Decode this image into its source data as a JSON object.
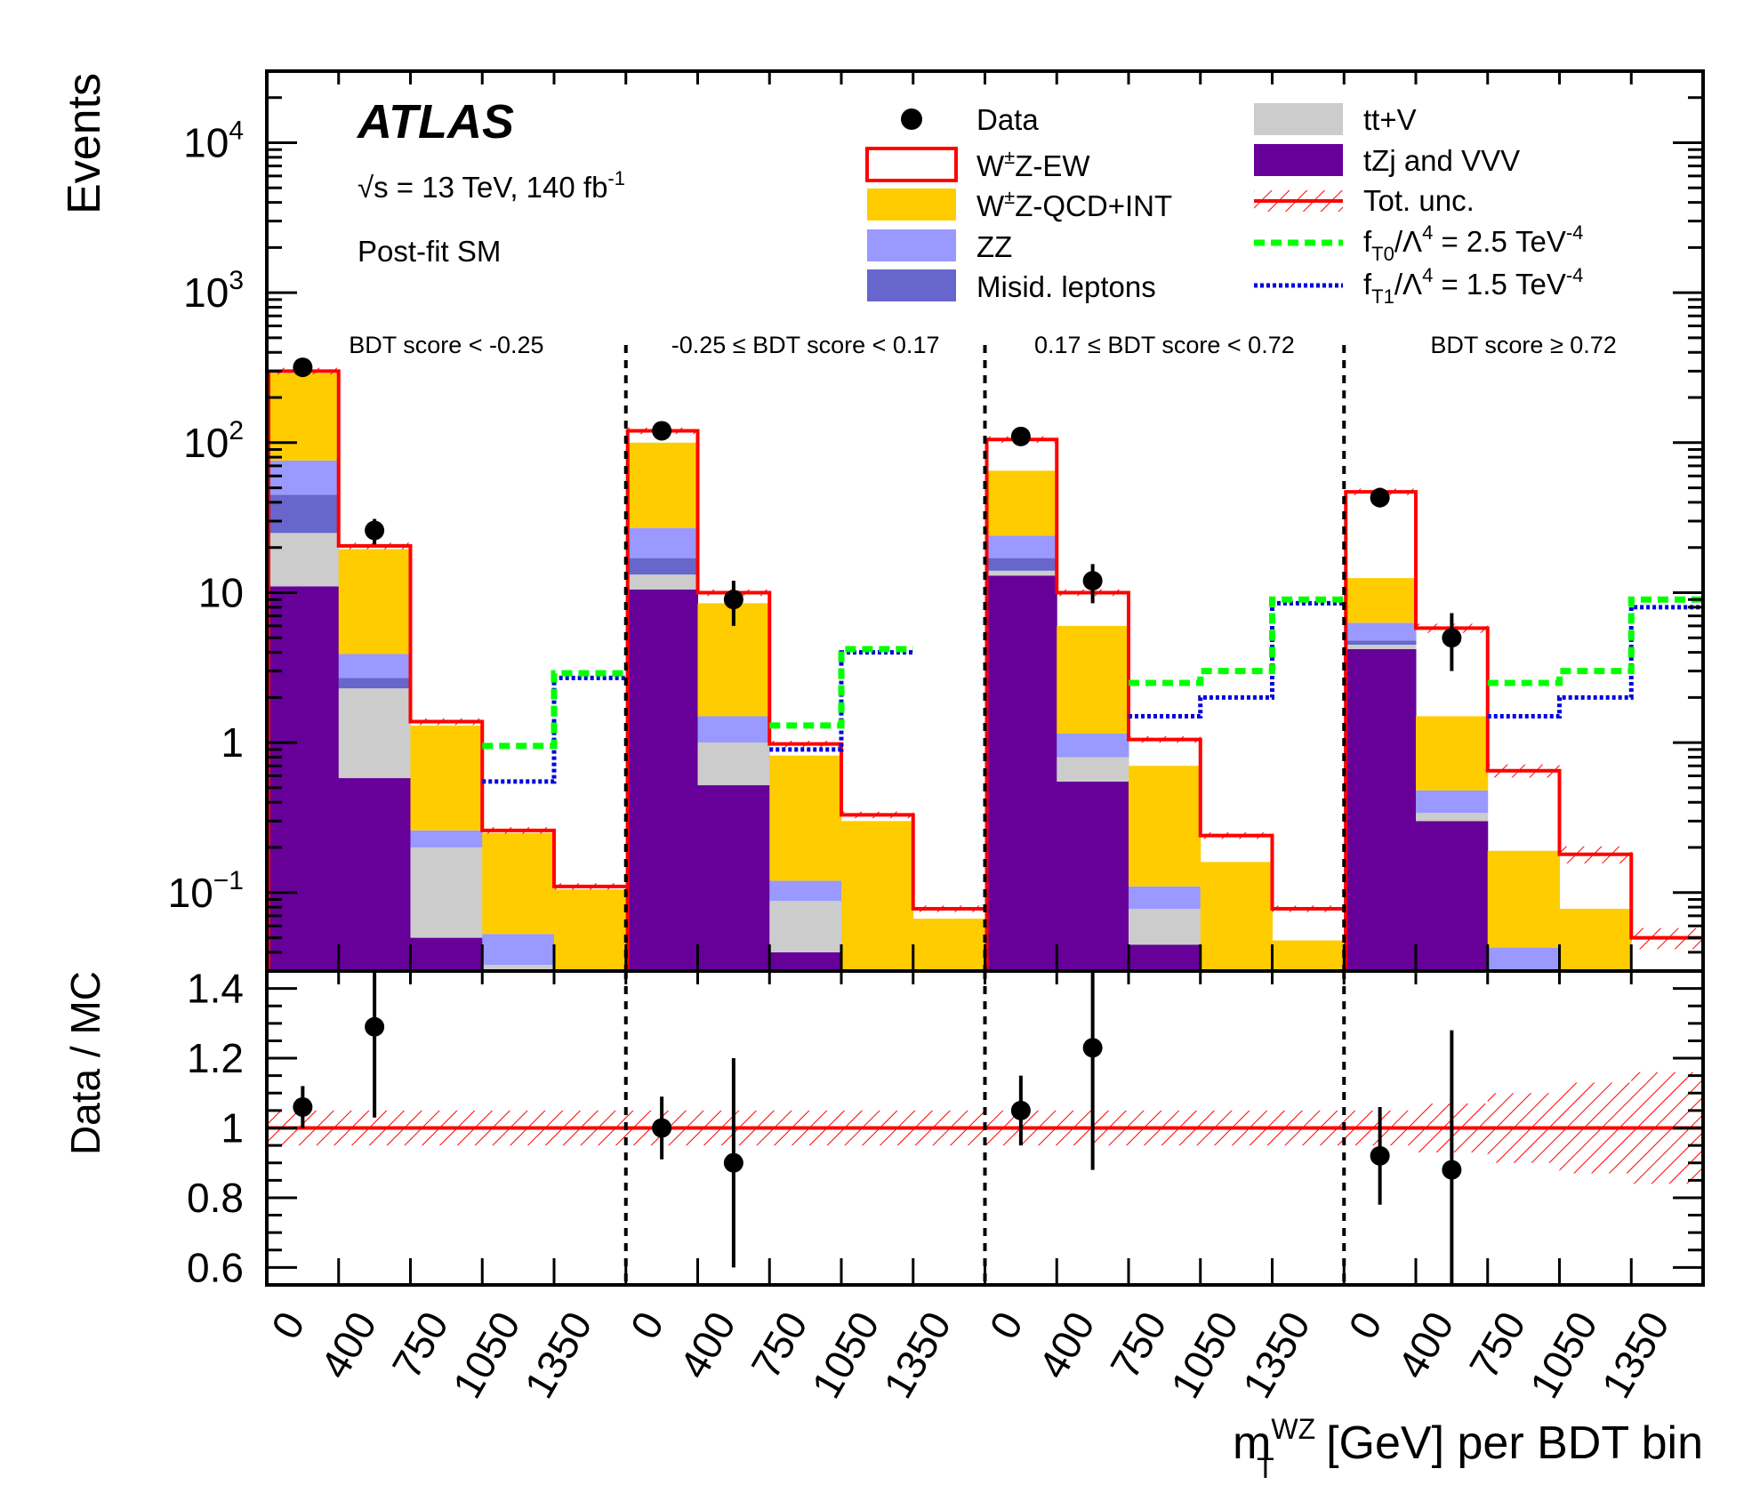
{
  "chart_data": {
    "type": "bar",
    "stacked": true,
    "log_y_upper": true,
    "experiment": "ATLAS",
    "energy_label": "√s = 13 TeV, 140 fb",
    "energy_label_sup": "-1",
    "fit_label": "Post-fit SM",
    "ylabel_upper": "Events",
    "ylabel_lower": "Data / MC",
    "xlabel": "m",
    "xlabel_sup": "WZ",
    "xlabel_sub": "T",
    "xlabel_rest": " [GeV] per BDT bin",
    "ylim_upper": [
      0.03,
      30000
    ],
    "ylim_lower": [
      0.55,
      1.45
    ],
    "upper_tick_labels": [
      {
        "value": 10000,
        "base": "10",
        "exp": "4"
      },
      {
        "value": 1000,
        "base": "10",
        "exp": "3"
      },
      {
        "value": 100,
        "base": "10",
        "exp": "2"
      },
      {
        "value": 10,
        "base": "10",
        "exp": ""
      },
      {
        "value": 1,
        "base": "1",
        "exp": ""
      },
      {
        "value": 0.1,
        "base": "10",
        "exp": "−1"
      }
    ],
    "lower_tick_labels": [
      {
        "value": 1.4,
        "label": "1.4"
      },
      {
        "value": 1.2,
        "label": "1.2"
      },
      {
        "value": 1.0,
        "label": "1"
      },
      {
        "value": 0.8,
        "label": "0.8"
      },
      {
        "value": 0.6,
        "label": "0.6"
      }
    ],
    "x_tick_labels": [
      "0",
      "400",
      "750",
      "1050",
      "1350"
    ],
    "regions": [
      "BDT score < -0.25",
      "-0.25 ≤ BDT score < 0.17",
      "0.17 ≤ BDT score < 0.72",
      "BDT score ≥ 0.72"
    ],
    "legend": {
      "data": "Data",
      "wz_ew": "W",
      "wz_ew_sup": "±",
      "wz_ew_rest": "Z-EW",
      "wz_qcd": "W",
      "wz_qcd_sup": "±",
      "wz_qcd_rest": "Z-QCD+INT",
      "zz": "ZZ",
      "misid": "Misid. leptons",
      "ttv": "tt+V",
      "tzj": "tZj and VVV",
      "unc": "Tot. unc.",
      "ft0_f": "f",
      "ft0_sub": "T0",
      "ft0_rest": "/Λ",
      "ft0_sup1": "4",
      "ft0_val": " = 2.5 TeV",
      "ft0_sup2": "-4",
      "ft1_f": "f",
      "ft1_sub": "T1",
      "ft1_rest": "/Λ",
      "ft1_sup1": "4",
      "ft1_val": " = 1.5 TeV",
      "ft1_sup2": "-4"
    },
    "colors": {
      "tzj": "#660099",
      "ttv": "#cccccc",
      "misid": "#6666cc",
      "zz": "#9999ff",
      "wz_qcd": "#ffcc00",
      "wz_ew": "#ff0000",
      "ft0": "#00ff00",
      "ft1": "#0000dd",
      "data": "#000000"
    },
    "stack_order": [
      "tzj",
      "ttv",
      "misid",
      "zz",
      "wz_qcd",
      "wz_ew"
    ],
    "stack_tops": [
      {
        "tzj": 11,
        "ttv": 25,
        "misid": 45,
        "zz": 76,
        "wz_qcd": 290,
        "wz_ew": 300
      },
      {
        "tzj": 0.58,
        "ttv": 2.3,
        "misid": 2.7,
        "zz": 3.9,
        "wz_qcd": 19.5,
        "wz_ew": 20.5
      },
      {
        "tzj": 0.05,
        "ttv": 0.2,
        "misid": 0.2,
        "zz": 0.26,
        "wz_qcd": 1.3,
        "wz_ew": 1.38
      },
      {
        "tzj": 0.025,
        "ttv": 0.033,
        "misid": 0.033,
        "zz": 0.053,
        "wz_qcd": 0.25,
        "wz_ew": 0.26
      },
      {
        "tzj": 0.025,
        "ttv": 0.025,
        "misid": 0.025,
        "zz": 0.025,
        "wz_qcd": 0.105,
        "wz_ew": 0.11
      },
      {
        "tzj": 10.5,
        "ttv": 13.2,
        "misid": 17,
        "zz": 27,
        "wz_qcd": 100,
        "wz_ew": 120
      },
      {
        "tzj": 0.52,
        "ttv": 1.0,
        "misid": 1.0,
        "zz": 1.5,
        "wz_qcd": 8.5,
        "wz_ew": 10
      },
      {
        "tzj": 0.04,
        "ttv": 0.088,
        "misid": 0.088,
        "zz": 0.12,
        "wz_qcd": 0.82,
        "wz_ew": 0.98
      },
      {
        "tzj": 0.025,
        "ttv": 0.025,
        "misid": 0.025,
        "zz": 0.025,
        "wz_qcd": 0.3,
        "wz_ew": 0.33
      },
      {
        "tzj": 0.025,
        "ttv": 0.025,
        "misid": 0.025,
        "zz": 0.025,
        "wz_qcd": 0.067,
        "wz_ew": 0.078
      },
      {
        "tzj": 13,
        "ttv": 14,
        "misid": 17,
        "zz": 24,
        "wz_qcd": 65,
        "wz_ew": 105
      },
      {
        "tzj": 0.55,
        "ttv": 0.8,
        "misid": 0.8,
        "zz": 1.15,
        "wz_qcd": 6,
        "wz_ew": 10
      },
      {
        "tzj": 0.045,
        "ttv": 0.078,
        "misid": 0.078,
        "zz": 0.11,
        "wz_qcd": 0.7,
        "wz_ew": 1.05
      },
      {
        "tzj": 0.025,
        "ttv": 0.025,
        "misid": 0.025,
        "zz": 0.025,
        "wz_qcd": 0.16,
        "wz_ew": 0.24
      },
      {
        "tzj": 0.025,
        "ttv": 0.025,
        "misid": 0.025,
        "zz": 0.025,
        "wz_qcd": 0.048,
        "wz_ew": 0.078
      },
      {
        "tzj": 4.2,
        "ttv": 4.5,
        "misid": 4.8,
        "zz": 6.3,
        "wz_qcd": 12.5,
        "wz_ew": 47
      },
      {
        "tzj": 0.3,
        "ttv": 0.34,
        "misid": 0.34,
        "zz": 0.48,
        "wz_qcd": 1.5,
        "wz_ew": 5.8
      },
      {
        "tzj": 0.025,
        "ttv": 0.025,
        "misid": 0.025,
        "zz": 0.043,
        "wz_qcd": 0.19,
        "wz_ew": 0.65
      },
      {
        "tzj": 0.025,
        "ttv": 0.025,
        "misid": 0.025,
        "zz": 0.025,
        "wz_qcd": 0.078,
        "wz_ew": 0.18
      },
      {
        "tzj": 0.025,
        "ttv": 0.025,
        "misid": 0.025,
        "zz": 0.025,
        "wz_qcd": 0.025,
        "wz_ew": 0.05
      }
    ],
    "ft0_bins": [
      {
        "bin": 3,
        "value": 0.95
      },
      {
        "bin": 4,
        "value": 2.9
      },
      {
        "bin": 7,
        "value": 1.3
      },
      {
        "bin": 8,
        "value": 4.2
      },
      {
        "bin": 12,
        "value": 2.5
      },
      {
        "bin": 13,
        "value": 3.0
      },
      {
        "bin": 14,
        "value": 9.0
      },
      {
        "bin": 17,
        "value": 2.5
      },
      {
        "bin": 18,
        "value": 3.0
      },
      {
        "bin": 19,
        "value": 9.0
      }
    ],
    "ft1_bins": [
      {
        "bin": 3,
        "value": 0.55
      },
      {
        "bin": 4,
        "value": 2.7
      },
      {
        "bin": 7,
        "value": 0.9
      },
      {
        "bin": 8,
        "value": 4.0
      },
      {
        "bin": 12,
        "value": 1.5
      },
      {
        "bin": 13,
        "value": 2.0
      },
      {
        "bin": 14,
        "value": 8.5
      },
      {
        "bin": 17,
        "value": 1.5
      },
      {
        "bin": 18,
        "value": 2.0
      },
      {
        "bin": 19,
        "value": 8.0
      }
    ],
    "data_points": [
      {
        "bin": 0,
        "value": 318,
        "lo": 300,
        "hi": 336
      },
      {
        "bin": 1,
        "value": 26,
        "lo": 21,
        "hi": 31
      },
      {
        "bin": 5,
        "value": 120,
        "lo": 109,
        "hi": 131
      },
      {
        "bin": 6,
        "value": 9,
        "lo": 6,
        "hi": 12
      },
      {
        "bin": 10,
        "value": 110,
        "lo": 100,
        "hi": 121
      },
      {
        "bin": 11,
        "value": 12,
        "lo": 8.5,
        "hi": 15.5
      },
      {
        "bin": 15,
        "value": 43,
        "lo": 37,
        "hi": 50
      },
      {
        "bin": 16,
        "value": 5,
        "lo": 3,
        "hi": 7.3
      }
    ],
    "ratio_points": [
      {
        "bin": 0,
        "value": 1.06,
        "lo": 1.0,
        "hi": 1.12
      },
      {
        "bin": 1,
        "value": 1.29,
        "lo": 1.03,
        "hi": 1.55
      },
      {
        "bin": 5,
        "value": 1.0,
        "lo": 0.91,
        "hi": 1.09
      },
      {
        "bin": 6,
        "value": 0.9,
        "lo": 0.6,
        "hi": 1.2
      },
      {
        "bin": 10,
        "value": 1.05,
        "lo": 0.95,
        "hi": 1.15
      },
      {
        "bin": 11,
        "value": 1.23,
        "lo": 0.88,
        "hi": 1.58
      },
      {
        "bin": 15,
        "value": 0.92,
        "lo": 0.78,
        "hi": 1.06
      },
      {
        "bin": 16,
        "value": 0.88,
        "lo": 0.48,
        "hi": 1.28
      }
    ],
    "ratio_unc": [
      0.05,
      0.05,
      0.05,
      0.05,
      0.05,
      0.05,
      0.05,
      0.05,
      0.05,
      0.05,
      0.05,
      0.05,
      0.05,
      0.05,
      0.05,
      0.05,
      0.07,
      0.1,
      0.13,
      0.16
    ]
  }
}
